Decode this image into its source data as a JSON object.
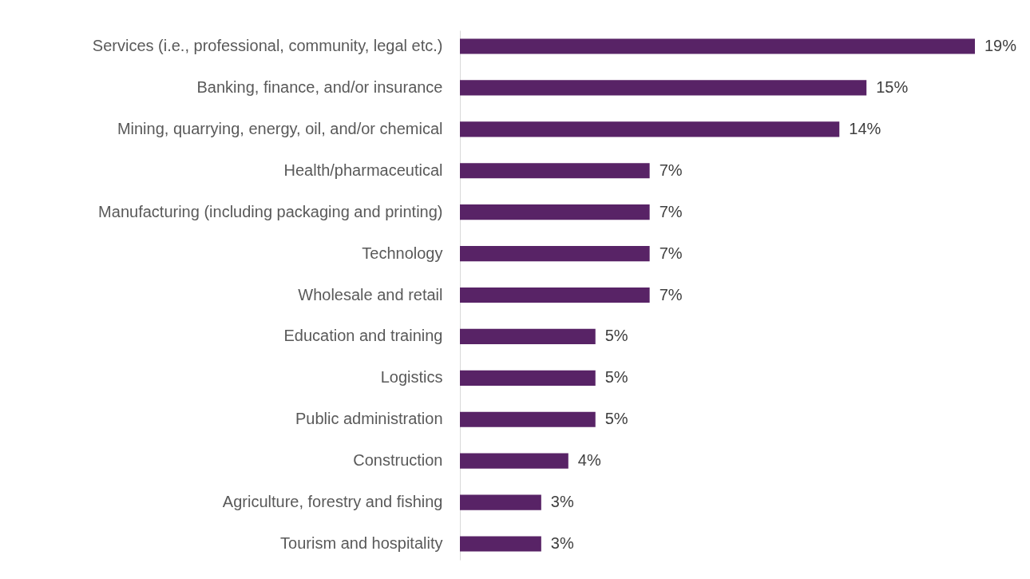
{
  "chart_data": {
    "type": "bar",
    "orientation": "horizontal",
    "categories": [
      "Services (i.e., professional, community, legal etc.)",
      "Banking, finance, and/or insurance",
      "Mining, quarrying, energy, oil, and/or chemical",
      "Health/pharmaceutical",
      "Manufacturing (including packaging and printing)",
      "Technology",
      "Wholesale and retail",
      "Education and training",
      "Logistics",
      "Public administration",
      "Construction",
      "Agriculture, forestry and fishing",
      "Tourism and hospitality"
    ],
    "values": [
      19,
      15,
      14,
      7,
      7,
      7,
      7,
      5,
      5,
      5,
      4,
      3,
      3
    ],
    "value_labels": [
      "19%",
      "15%",
      "14%",
      "7%",
      "7%",
      "7%",
      "7%",
      "5%",
      "5%",
      "5%",
      "4%",
      "3%",
      "3%"
    ],
    "color": "#582366",
    "grid": false
  }
}
